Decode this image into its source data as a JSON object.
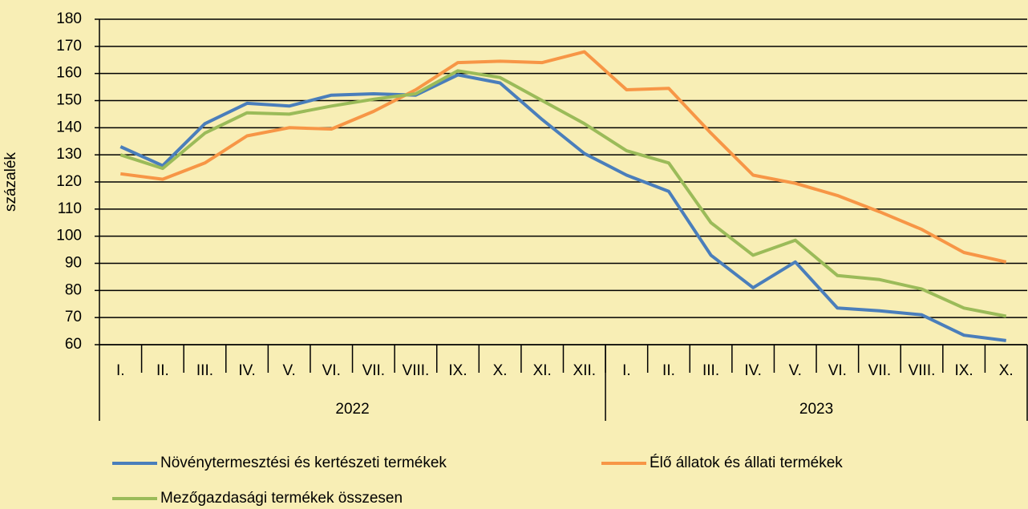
{
  "chart_data": {
    "type": "line",
    "y_label": "százalék",
    "category_groups": [
      {
        "label": "2022",
        "categories": [
          "I.",
          "II.",
          "III.",
          "IV.",
          "V.",
          "VI.",
          "VII.",
          "VIII.",
          "IX.",
          "X.",
          "XI.",
          "XII."
        ]
      },
      {
        "label": "2023",
        "categories": [
          "I.",
          "II.",
          "III.",
          "IV.",
          "V.",
          "VI.",
          "VII.",
          "VIII.",
          "IX.",
          "X."
        ]
      }
    ],
    "series": [
      {
        "name": "Növénytermesztési és kertészeti termékek",
        "color": "#4a7ebb",
        "values": [
          133,
          126,
          141.5,
          149,
          148,
          152,
          152.5,
          152,
          159.5,
          156.5,
          143,
          130.5,
          122.5,
          116.5,
          93,
          81,
          90.5,
          73.5,
          72.5,
          71,
          63.5,
          61.5
        ]
      },
      {
        "name": "Élő állatok és állati termékek",
        "color": "#f79646",
        "values": [
          123,
          121,
          127,
          137,
          140,
          139.5,
          146,
          154,
          164,
          164.5,
          164,
          168,
          154,
          154.5,
          138,
          122.5,
          119.5,
          115,
          109,
          102.5,
          94,
          90.5
        ]
      },
      {
        "name": "Mezőgazdasági termékek összesen",
        "color": "#9bbb59",
        "values": [
          130,
          125,
          138,
          145.5,
          145,
          148,
          150.5,
          152.5,
          161,
          158.5,
          150,
          141.5,
          131.5,
          127,
          105,
          93,
          98.5,
          85.5,
          84,
          80.5,
          73.5,
          70.5
        ]
      }
    ],
    "ylim": [
      60,
      180
    ],
    "yticks": [
      60,
      70,
      80,
      90,
      100,
      110,
      120,
      130,
      140,
      150,
      160,
      170,
      180
    ],
    "grid": true
  }
}
